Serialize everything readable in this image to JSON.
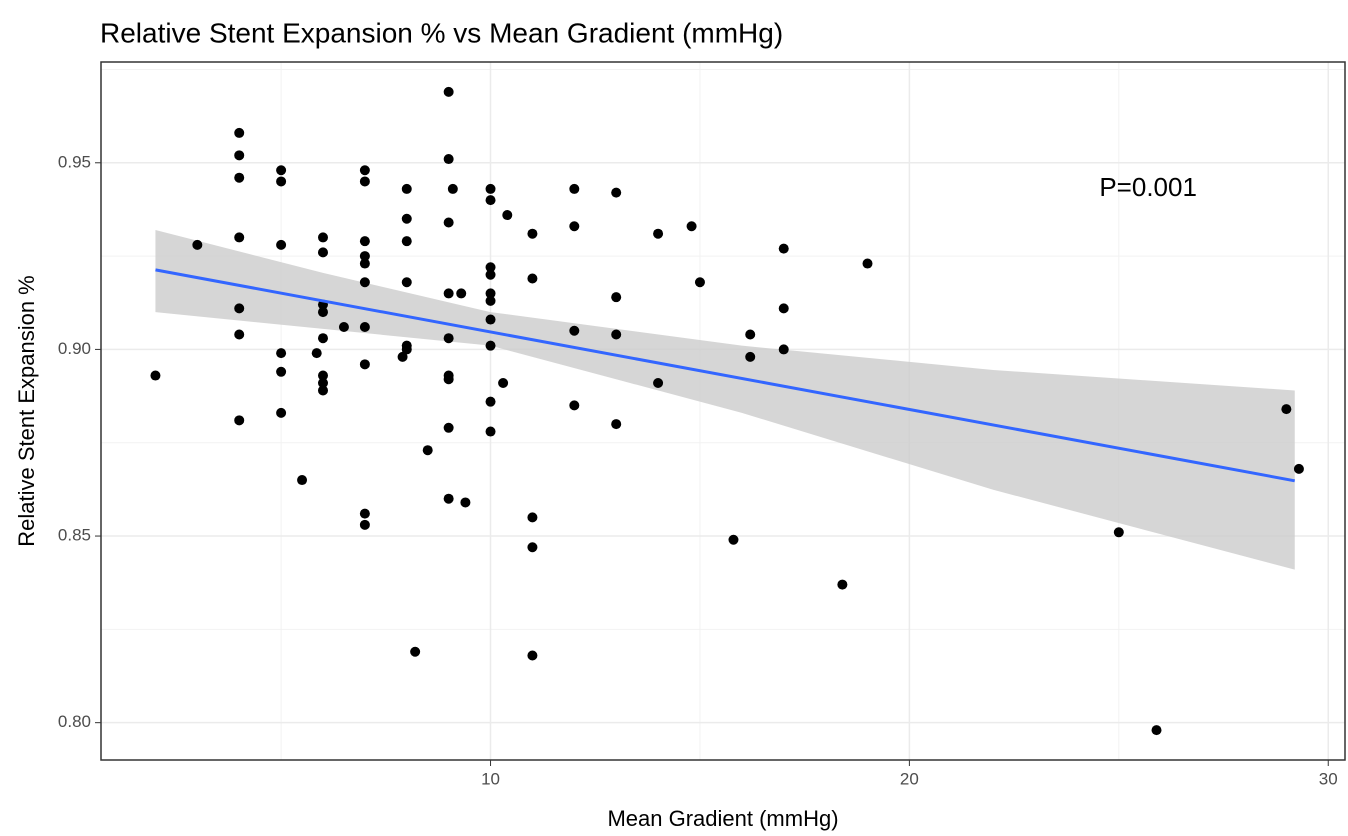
{
  "chart_data": {
    "type": "scatter",
    "title": "Relative Stent Expansion % vs Mean Gradient (mmHg)",
    "x_label": "Mean Gradient (mmHg)",
    "y_label": "Relative Stent Expansion %",
    "annotation": {
      "text": "P=0.001",
      "x": 25.7,
      "y": 0.943
    },
    "x": [
      2,
      3,
      4,
      4,
      4,
      4,
      4,
      4,
      4,
      5,
      5,
      5,
      5,
      5,
      5,
      5.5,
      6,
      6,
      6,
      6,
      6,
      6,
      6,
      6,
      5.85,
      6.5,
      7,
      7,
      7,
      7,
      7,
      7,
      7,
      7,
      7,
      7,
      7.9,
      8,
      8,
      8,
      8,
      8,
      8,
      8.2,
      8.5,
      9,
      9,
      9,
      9,
      9,
      9,
      9,
      9,
      9,
      9.1,
      9.3,
      9.4,
      10,
      10,
      10,
      10,
      10,
      10,
      10,
      10,
      10,
      10,
      10.3,
      10.4,
      11,
      11,
      11,
      11,
      11,
      12,
      12,
      12,
      12,
      13,
      13,
      13,
      13,
      14,
      14,
      14.8,
      15,
      15.8,
      16.2,
      16.2,
      17,
      17,
      17,
      18.4,
      19,
      25,
      25.9,
      29,
      29.3
    ],
    "values": [
      0.893,
      0.928,
      0.958,
      0.952,
      0.946,
      0.93,
      0.911,
      0.904,
      0.881,
      0.948,
      0.945,
      0.928,
      0.899,
      0.894,
      0.883,
      0.865,
      0.93,
      0.926,
      0.912,
      0.91,
      0.903,
      0.893,
      0.891,
      0.889,
      0.899,
      0.906,
      0.948,
      0.945,
      0.929,
      0.925,
      0.923,
      0.918,
      0.906,
      0.896,
      0.856,
      0.853,
      0.898,
      0.943,
      0.935,
      0.929,
      0.918,
      0.901,
      0.9,
      0.819,
      0.873,
      0.969,
      0.951,
      0.934,
      0.915,
      0.903,
      0.893,
      0.892,
      0.879,
      0.86,
      0.943,
      0.915,
      0.859,
      0.943,
      0.94,
      0.922,
      0.92,
      0.915,
      0.913,
      0.908,
      0.901,
      0.886,
      0.878,
      0.891,
      0.936,
      0.931,
      0.919,
      0.855,
      0.847,
      0.818,
      0.943,
      0.933,
      0.905,
      0.885,
      0.942,
      0.914,
      0.904,
      0.88,
      0.891,
      0.931,
      0.933,
      0.918,
      0.849,
      0.904,
      0.898,
      0.927,
      0.911,
      0.9,
      0.837,
      0.923,
      0.851,
      0.798,
      0.884,
      0.868
    ],
    "color": "#000000",
    "fit": {
      "x": [
        2,
        29.2
      ],
      "values": [
        0.9213,
        0.8648
      ],
      "color": "#3366ff"
    },
    "band": {
      "x": [
        2,
        6,
        10,
        16,
        22,
        29.2
      ],
      "upper": [
        0.932,
        0.9205,
        0.91,
        0.901,
        0.8945,
        0.889
      ],
      "lower": [
        0.91,
        0.9055,
        0.901,
        0.883,
        0.8624,
        0.841
      ],
      "color": "#cccccc"
    },
    "xlim": [
      0.7,
      30.4
    ],
    "ylim": [
      0.79,
      0.977
    ],
    "xticks": [
      10,
      20,
      30
    ],
    "yticks": [
      {
        "value": 0.8,
        "label": "0.80"
      },
      0.85,
      {
        "value": 0.9,
        "label": "0.90"
      },
      0.95
    ],
    "grid": true
  }
}
